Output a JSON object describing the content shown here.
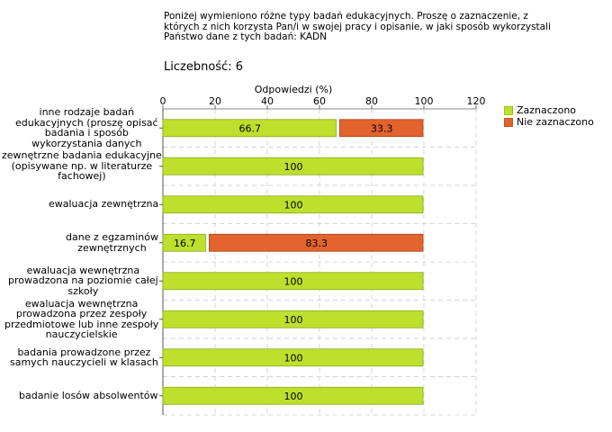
{
  "question": {
    "lines": [
      "Poniżej wymieniono różne typy badań edukacyjnych. Proszę o zaznaczenie, z",
      "których z nich korzysta Pan/i w swojej pracy i opisanie, w jaki sposób wykorzystali",
      "Państwo dane z tych badań:  KADN"
    ]
  },
  "count_label": "Liczebność: 6",
  "chart_data": {
    "type": "bar",
    "orientation": "horizontal",
    "stacked": true,
    "title": "",
    "xlabel": "Odpowiedzi (%)",
    "ylabel": "",
    "xlim": [
      0,
      120
    ],
    "xticks": [
      0,
      20,
      40,
      60,
      80,
      100,
      120
    ],
    "grid": true,
    "legend_position": "right",
    "categories": [
      [
        "inne rodzaje badań",
        "edukacyjnych (proszę opisać",
        "badania i sposób",
        "wykorzystania danych"
      ],
      [
        "zewnętrzne badania edukacyjne",
        "(opisywane np. w literaturze",
        "fachowej)"
      ],
      [
        "ewaluacja zewnętrzna"
      ],
      [
        "dane z egzaminów",
        "zewnętrznych"
      ],
      [
        "ewaluacja wewnętrzna",
        "prowadzona na poziomie całej",
        "szkoły"
      ],
      [
        "ewaluacja wewnętrzna",
        "prowadzona przez zespoły",
        "przedmiotowe lub inne zespoły",
        "nauczycielskie"
      ],
      [
        "badania prowadzone przez",
        "samych nauczycieli w klasach"
      ],
      [
        "badanie losów absolwentów"
      ]
    ],
    "series": [
      {
        "name": "Zaznaczono",
        "color": "#bde02c",
        "values": [
          66.7,
          100,
          100,
          16.7,
          100,
          100,
          100,
          100
        ],
        "labels": [
          "66.7",
          "100",
          "100",
          "16.7",
          "100",
          "100",
          "100",
          "100"
        ]
      },
      {
        "name": "Nie zaznaczono",
        "color": "#e2632d",
        "values": [
          33.3,
          0,
          0,
          83.3,
          0,
          0,
          0,
          0
        ],
        "labels": [
          "33.3",
          "",
          "",
          "83.3",
          "",
          "",
          "",
          ""
        ]
      }
    ]
  }
}
